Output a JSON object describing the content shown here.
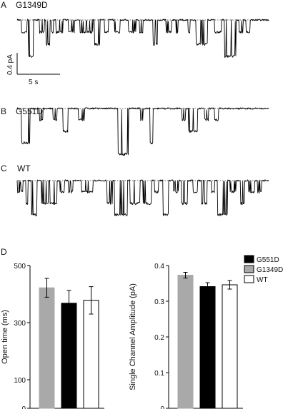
{
  "traces": {
    "panel_a": {
      "letter": "A",
      "label": "G1349D"
    },
    "panel_b": {
      "letter": "B",
      "label": "G551D"
    },
    "panel_c": {
      "letter": "C",
      "label": "WT"
    },
    "scale_bar": {
      "y_label": "0.4 pA",
      "x_label": "5 s"
    }
  },
  "panel_d": {
    "letter": "D"
  },
  "legend": {
    "items": [
      {
        "label": "G551D",
        "color": "#000000"
      },
      {
        "label": "G1349D",
        "color": "#a9a9a9"
      },
      {
        "label": "WT",
        "color": "#ffffff"
      }
    ]
  },
  "chart_data": [
    {
      "type": "bar",
      "categories": [
        "G1349D",
        "G551D",
        "WT"
      ],
      "values": [
        422,
        368,
        378
      ],
      "errors": [
        33,
        45,
        48
      ],
      "colors": [
        "#a9a9a9",
        "#000000",
        "#ffffff"
      ],
      "ylabel": "Open time (ms)",
      "ylim": [
        0,
        500
      ],
      "yticks": [
        "0",
        "100",
        "300",
        "500"
      ],
      "ytick_values": [
        0,
        100,
        300,
        500
      ],
      "grid": false
    },
    {
      "type": "bar",
      "categories": [
        "G1349D",
        "G551D",
        "WT"
      ],
      "values": [
        0.373,
        0.341,
        0.346
      ],
      "errors": [
        0.008,
        0.011,
        0.012
      ],
      "colors": [
        "#a9a9a9",
        "#000000",
        "#ffffff"
      ],
      "ylabel": "Single Channel Amplitude (pA)",
      "ylim": [
        0,
        0.4
      ],
      "yticks": [
        "0",
        "0.1",
        "0.2",
        "0.3",
        "0.4"
      ],
      "ytick_values": [
        0,
        0.1,
        0.2,
        0.3,
        0.4
      ],
      "grid": false
    }
  ]
}
